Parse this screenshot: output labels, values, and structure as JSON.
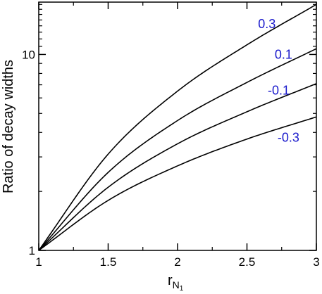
{
  "chart_data": {
    "type": "line",
    "title": "",
    "xlabel": "r",
    "xlabel_subscript": "N",
    "xlabel_subsubscript": "1",
    "ylabel": "Ratio of decay widths",
    "xlim": [
      1,
      3
    ],
    "ylim": [
      1,
      18.5
    ],
    "yscale": "log",
    "grid": false,
    "x_ticks": [
      1,
      1.5,
      2,
      2.5,
      3
    ],
    "x_tick_labels": [
      "1",
      "1.5",
      "2",
      "2.5",
      "3"
    ],
    "y_ticks": [
      1,
      10
    ],
    "y_tick_labels": [
      "1",
      "10"
    ],
    "x": [
      1,
      1.5,
      2,
      2.5,
      3
    ],
    "series": [
      {
        "name": "0.3",
        "values": [
          1.0,
          3.1,
          6.5,
          11.2,
          18.0
        ]
      },
      {
        "name": "0.1",
        "values": [
          1.0,
          2.5,
          4.6,
          7.2,
          10.7
        ]
      },
      {
        "name": "-0.1",
        "values": [
          1.0,
          2.1,
          3.5,
          5.1,
          7.1
        ]
      },
      {
        "name": "-0.3",
        "values": [
          1.0,
          1.8,
          2.7,
          3.7,
          4.8
        ]
      }
    ],
    "label_color": "#1a1acc",
    "line_color": "#000000"
  }
}
